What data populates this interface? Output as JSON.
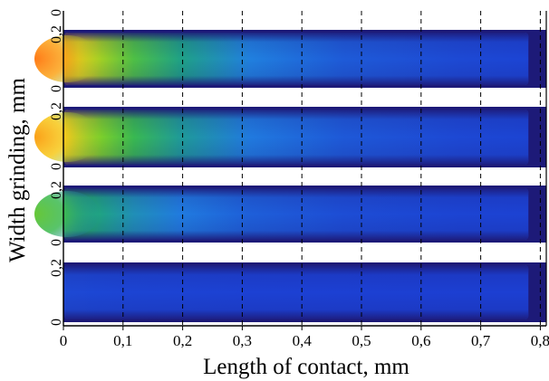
{
  "chart_data": {
    "type": "heatmap",
    "title": "",
    "xlabel": "Length of contact, mm",
    "ylabel": "Width grinding, mm",
    "x_ticks": [
      "0",
      "0,1",
      "0,2",
      "0,3",
      "0,4",
      "0,5",
      "0,6",
      "0,7",
      "0,8"
    ],
    "x_tick_values": [
      0,
      0.1,
      0.2,
      0.3,
      0.4,
      0.5,
      0.6,
      0.7,
      0.8
    ],
    "xlim": [
      0,
      0.81
    ],
    "grid": "vertical dashed lines at x ticks",
    "colormap": [
      "#1f1a7a",
      "#1b2fcf",
      "#2080e0",
      "#1fb060",
      "#7ccf2a",
      "#f6d21a",
      "#ff7a18"
    ],
    "panels": [
      {
        "name": "panel-1",
        "ylim": [
          0,
          0.2
        ],
        "y_ticks": [
          "0",
          "0,2"
        ],
        "peak_level": 0.92,
        "extent_mm": 0.78
      },
      {
        "name": "panel-2",
        "ylim": [
          0,
          0.2
        ],
        "y_ticks": [
          "0",
          "0,2"
        ],
        "peak_level": 0.85,
        "extent_mm": 0.78
      },
      {
        "name": "panel-3",
        "ylim": [
          0,
          0.2
        ],
        "y_ticks": [
          "0",
          "0,2"
        ],
        "peak_level": 0.55,
        "extent_mm": 0.78
      },
      {
        "name": "panel-4",
        "ylim": [
          0,
          0.2
        ],
        "y_ticks": [
          "0",
          "0,2"
        ],
        "peak_level": 0.22,
        "extent_mm": 0.78
      }
    ]
  }
}
